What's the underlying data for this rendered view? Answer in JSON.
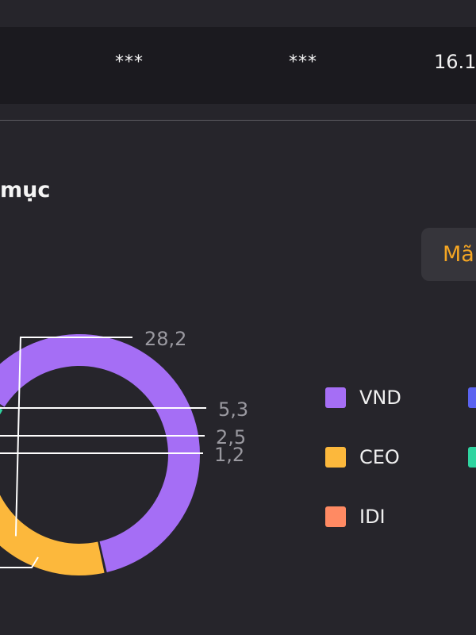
{
  "summary": {
    "value_1": "***",
    "value_2": "***",
    "value_3": "16.1"
  },
  "section": {
    "title": "mục"
  },
  "filter": {
    "label": "Mã"
  },
  "chart_data": {
    "type": "pie",
    "categories": [
      "VND",
      "CEO",
      "IDI",
      "",
      "",
      ""
    ],
    "values": [
      62.8,
      28.2,
      5.3,
      2.5,
      1.2,
      0.3
    ],
    "data_labels": [
      "",
      "28,2",
      "5,3",
      "2,5",
      "1,2",
      ""
    ],
    "colors": [
      "#a56ef5",
      "#fcb83c",
      "#ff8a63",
      "#5a63f0",
      "#2fd4a0",
      "#e6e6e6"
    ],
    "legend_placement": "right",
    "legend": [
      {
        "label": "VND",
        "color": "#a56ef5"
      },
      {
        "label": "CEO",
        "color": "#fcb83c"
      },
      {
        "label": "IDI",
        "color": "#ff8a63"
      },
      {
        "label": "",
        "color": "#5a63f0"
      },
      {
        "label": "",
        "color": "#2fd4a0"
      }
    ]
  }
}
